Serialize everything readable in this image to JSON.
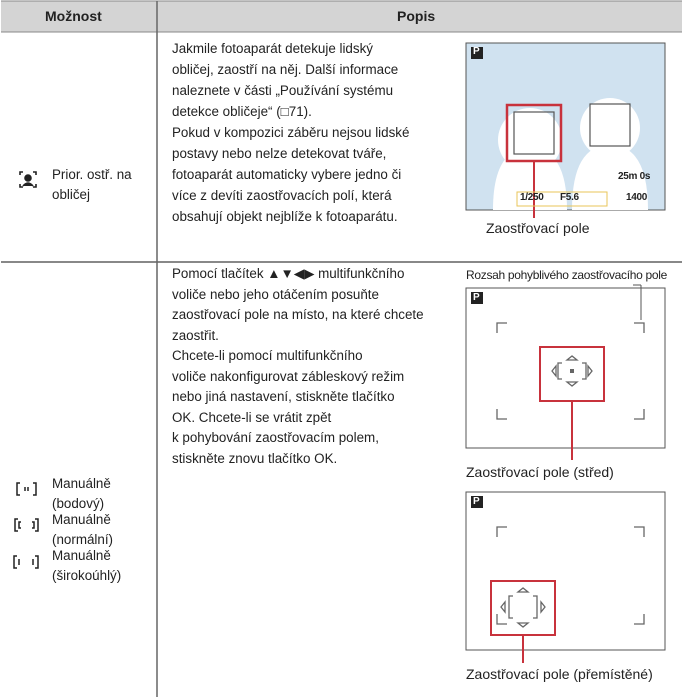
{
  "table": {
    "header": [
      "Možnost",
      "Popis"
    ],
    "rows": [
      {
        "options": [
          {
            "label": [
              "Prior. ostř. na",
              "obličej"
            ]
          }
        ],
        "description": [
          "Jakmile fotoaparát detekuje lidský",
          "obličej, zaostří na něj. Další informace",
          "naleznete v části „Používání systému",
          "detekce obličeje“ (□71).",
          "Pokud v kompozici záběru nejsou lidské",
          "postavy nebo nelze detekovat tváře,",
          "fotoaparát automaticky vybere jedno či",
          "více z devíti zaostřovacích polí, která",
          "obsahují objekt nejblíže k fotoaparátu."
        ],
        "figure": {
          "screen": [
            "P",
            "1/250",
            "F5.6",
            "25m 0s",
            "1400"
          ],
          "caption": "Zaostřovací pole"
        }
      },
      {
        "options": [
          {
            "label": [
              "Manuálně",
              "(bodový)"
            ]
          },
          {
            "label": [
              "Manuálně",
              "(normální)"
            ]
          },
          {
            "label": [
              "Manuálně",
              "(širokoúhlý)"
            ]
          }
        ],
        "description": [
          "Pomocí tlačítek ▲▼◀▶ multifunkčního",
          "voliče nebo jeho otáčením posuňte",
          "zaostřovací pole na místo, na které chcete",
          "zaostřit.",
          "Chcete-li pomocí multifunkčního",
          "voliče nakonfigurovat zábleskový režim",
          "nebo jiná nastavení, stiskněte tlačítko",
          "OK. Chcete-li se vrátit zpět",
          "k pohybování zaostřovacím polem,",
          "stiskněte znovu tlačítko OK."
        ],
        "figure_top_caption": "Rozsah pohyblivého zaostřovacího pole",
        "figures": [
          {
            "screen": [
              "P"
            ],
            "caption": "Zaostřovací pole (střed)"
          },
          {
            "screen": [
              "P"
            ],
            "caption": "Zaostřovací pole (přemístěné)"
          }
        ]
      }
    ]
  }
}
